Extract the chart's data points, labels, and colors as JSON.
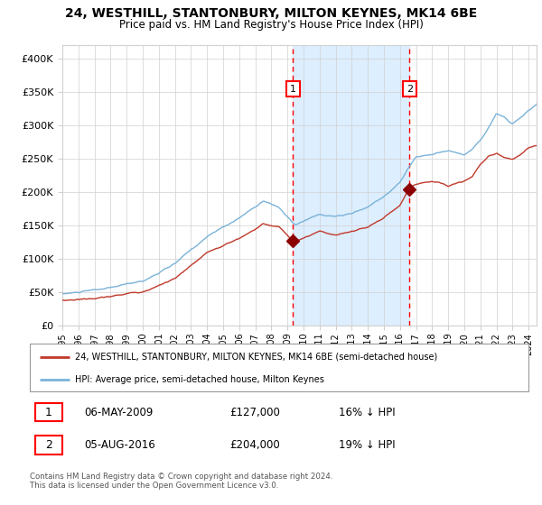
{
  "title_line1": "24, WESTHILL, STANTONBURY, MILTON KEYNES, MK14 6BE",
  "title_line2": "Price paid vs. HM Land Registry's House Price Index (HPI)",
  "ylabel_ticks": [
    "£0",
    "£50K",
    "£100K",
    "£150K",
    "£200K",
    "£250K",
    "£300K",
    "£350K",
    "£400K"
  ],
  "ytick_values": [
    0,
    50000,
    100000,
    150000,
    200000,
    250000,
    300000,
    350000,
    400000
  ],
  "ylim": [
    0,
    420000
  ],
  "xlim_start": 1995,
  "xlim_end": 2024.5,
  "purchase1_date": 2009.35,
  "purchase1_price": 127000,
  "purchase2_date": 2016.59,
  "purchase2_price": 204000,
  "hpi_color": "#7ab3d8",
  "price_color": "#c0392b",
  "point_color": "#8b0000",
  "background_color": "#ffffff",
  "grid_color": "#d0d0d0",
  "shaded_color": "#ddeeff",
  "legend_label1": "24, WESTHILL, STANTONBURY, MILTON KEYNES, MK14 6BE (semi-detached house)",
  "legend_label2": "HPI: Average price, semi-detached house, Milton Keynes",
  "table_row1": [
    "1",
    "06-MAY-2009",
    "£127,000",
    "16% ↓ HPI"
  ],
  "table_row2": [
    "2",
    "05-AUG-2016",
    "£204,000",
    "19% ↓ HPI"
  ],
  "footnote": "Contains HM Land Registry data © Crown copyright and database right 2024.\nThis data is licensed under the Open Government Licence v3.0.",
  "hpi_waypoints_y": [
    1995,
    1996,
    1998,
    2000,
    2002,
    2004,
    2006,
    2007.5,
    2008.5,
    2009.2,
    2009.5,
    2010,
    2011,
    2012,
    2013,
    2014,
    2015,
    2016,
    2017,
    2018,
    2019,
    2019.5,
    2020,
    2020.5,
    2021,
    2021.5,
    2022,
    2022.5,
    2023,
    2023.5,
    2024,
    2024.5
  ],
  "hpi_waypoints_v": [
    48000,
    50000,
    55000,
    65000,
    90000,
    130000,
    158000,
    185000,
    175000,
    155000,
    148000,
    153000,
    162000,
    158000,
    162000,
    172000,
    188000,
    210000,
    248000,
    252000,
    258000,
    255000,
    250000,
    260000,
    275000,
    295000,
    315000,
    310000,
    300000,
    310000,
    320000,
    330000
  ],
  "price_waypoints_y": [
    1995,
    1996,
    1998,
    2000,
    2002,
    2004,
    2006,
    2007.5,
    2008.5,
    2009.35,
    2010,
    2011,
    2012,
    2013,
    2014,
    2015,
    2016,
    2016.59,
    2017,
    2018,
    2018.5,
    2019,
    2019.5,
    2020,
    2020.5,
    2021,
    2021.5,
    2022,
    2022.5,
    2023,
    2023.5,
    2024,
    2024.5
  ],
  "price_waypoints_v": [
    38000,
    40000,
    44000,
    52000,
    72000,
    108000,
    130000,
    152000,
    148000,
    127000,
    130000,
    138000,
    132000,
    138000,
    145000,
    158000,
    178000,
    204000,
    210000,
    215000,
    213000,
    208000,
    212000,
    215000,
    222000,
    240000,
    252000,
    258000,
    252000,
    248000,
    255000,
    265000,
    268000
  ]
}
